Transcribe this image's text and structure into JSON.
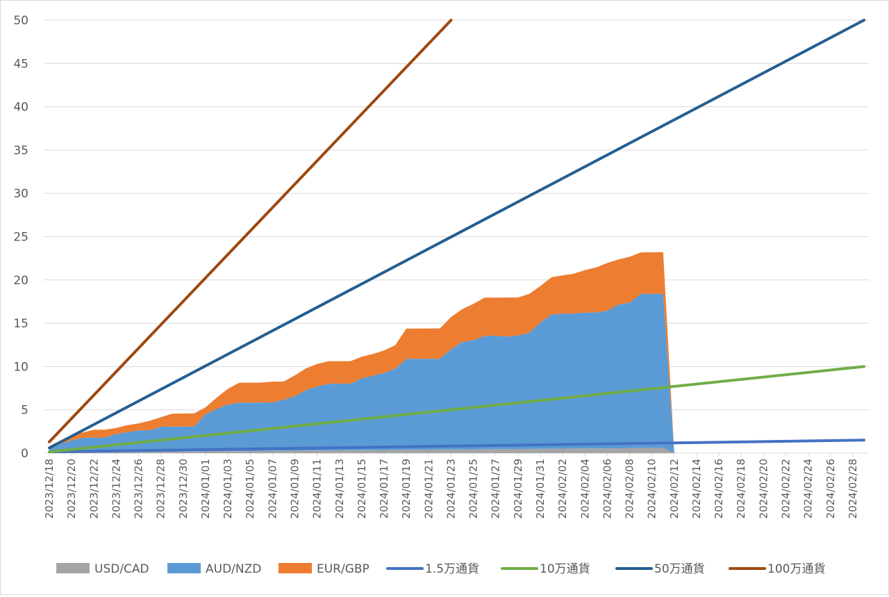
{
  "chart_data": {
    "type": "area",
    "title": "",
    "xlabel": "",
    "ylabel": "",
    "ylim": [
      0,
      50
    ],
    "yticks": [
      "0",
      "5",
      "10",
      "15",
      "20",
      "25",
      "30",
      "35",
      "40",
      "45",
      "50"
    ],
    "grid": true,
    "legend_position": "bottom",
    "x_start_date": "2023/12/18",
    "x_end_date": "2024/02/29",
    "x_ticks": [
      "2023/12/18",
      "2023/12/20",
      "2023/12/22",
      "2023/12/24",
      "2023/12/26",
      "2023/12/28",
      "2023/12/30",
      "2024/01/01",
      "2024/01/03",
      "2024/01/05",
      "2024/01/07",
      "2024/01/09",
      "2024/01/11",
      "2024/01/13",
      "2024/01/15",
      "2024/01/17",
      "2024/01/19",
      "2024/01/21",
      "2024/01/23",
      "2024/01/25",
      "2024/01/27",
      "2024/01/29",
      "2024/01/31",
      "2024/02/02",
      "2024/02/04",
      "2024/02/06",
      "2024/02/08",
      "2024/02/10",
      "2024/02/12",
      "2024/02/14",
      "2024/02/16",
      "2024/02/18",
      "2024/02/20",
      "2024/02/22",
      "2024/02/24",
      "2024/02/26",
      "2024/02/28"
    ],
    "stacked_area_series": [
      {
        "name": "USD/CAD",
        "color": "#a5a5a5",
        "x": [
          "2023/12/18",
          "2023/12/22",
          "2023/12/28",
          "2024/01/01",
          "2024/01/11",
          "2024/01/21",
          "2024/01/31",
          "2024/02/11",
          "2024/02/12"
        ],
        "values": [
          0.05,
          0.1,
          0.15,
          0.2,
          0.3,
          0.4,
          0.5,
          0.6,
          0.0
        ]
      },
      {
        "name": "AUD/NZD",
        "color": "#5b9bd5",
        "x": [
          "2023/12/18",
          "2023/12/19",
          "2023/12/20",
          "2023/12/21",
          "2023/12/22",
          "2023/12/23",
          "2023/12/24",
          "2023/12/25",
          "2023/12/26",
          "2023/12/27",
          "2023/12/28",
          "2023/12/29",
          "2023/12/30",
          "2023/12/31",
          "2024/01/01",
          "2024/01/02",
          "2024/01/03",
          "2024/01/04",
          "2024/01/05",
          "2024/01/06",
          "2024/01/07",
          "2024/01/08",
          "2024/01/09",
          "2024/01/10",
          "2024/01/11",
          "2024/01/12",
          "2024/01/13",
          "2024/01/14",
          "2024/01/15",
          "2024/01/16",
          "2024/01/17",
          "2024/01/18",
          "2024/01/19",
          "2024/01/20",
          "2024/01/21",
          "2024/01/22",
          "2024/01/23",
          "2024/01/24",
          "2024/01/25",
          "2024/01/26",
          "2024/01/27",
          "2024/01/28",
          "2024/01/29",
          "2024/01/30",
          "2024/01/31",
          "2024/02/01",
          "2024/02/02",
          "2024/02/03",
          "2024/02/04",
          "2024/02/05",
          "2024/02/06",
          "2024/02/07",
          "2024/02/08",
          "2024/02/09",
          "2024/02/10",
          "2024/02/11",
          "2024/02/12"
        ],
        "values": [
          0.45,
          1.0,
          1.4,
          1.7,
          1.7,
          1.7,
          2.1,
          2.3,
          2.5,
          2.5,
          2.9,
          2.9,
          2.9,
          2.9,
          4.3,
          4.9,
          5.4,
          5.6,
          5.6,
          5.6,
          5.6,
          5.9,
          6.3,
          7.0,
          7.4,
          7.7,
          7.7,
          7.7,
          8.3,
          8.6,
          8.9,
          9.4,
          10.5,
          10.5,
          10.5,
          10.5,
          11.6,
          12.4,
          12.6,
          13.1,
          13.1,
          13.0,
          13.1,
          13.4,
          14.6,
          15.5,
          15.6,
          15.6,
          15.7,
          15.7,
          15.9,
          16.6,
          16.8,
          17.8,
          17.8,
          17.8,
          0.0
        ]
      },
      {
        "name": "EUR/GBP",
        "color": "#ed7d31",
        "x": [
          "2023/12/18",
          "2023/12/19",
          "2023/12/20",
          "2023/12/21",
          "2023/12/22",
          "2023/12/23",
          "2023/12/24",
          "2023/12/25",
          "2023/12/26",
          "2023/12/27",
          "2023/12/28",
          "2023/12/29",
          "2023/12/30",
          "2023/12/31",
          "2024/01/01",
          "2024/01/02",
          "2024/01/03",
          "2024/01/04",
          "2024/01/05",
          "2024/01/06",
          "2024/01/07",
          "2024/01/08",
          "2024/01/09",
          "2024/01/10",
          "2024/01/11",
          "2024/01/12",
          "2024/01/13",
          "2024/01/14",
          "2024/01/15",
          "2024/01/16",
          "2024/01/17",
          "2024/01/18",
          "2024/01/19",
          "2024/01/20",
          "2024/01/21",
          "2024/01/22",
          "2024/01/23",
          "2024/01/24",
          "2024/01/25",
          "2024/01/26",
          "2024/01/27",
          "2024/01/28",
          "2024/01/29",
          "2024/01/30",
          "2024/01/31",
          "2024/02/01",
          "2024/02/02",
          "2024/02/03",
          "2024/02/04",
          "2024/02/05",
          "2024/02/06",
          "2024/02/07",
          "2024/02/08",
          "2024/02/09",
          "2024/02/10",
          "2024/02/11",
          "2024/02/12"
        ],
        "values": [
          0.3,
          0.4,
          0.5,
          0.6,
          0.9,
          0.9,
          0.7,
          0.8,
          0.8,
          1.1,
          1.1,
          1.5,
          1.5,
          1.5,
          0.8,
          1.3,
          1.8,
          2.3,
          2.3,
          2.3,
          2.4,
          2.1,
          2.4,
          2.5,
          2.6,
          2.6,
          2.6,
          2.6,
          2.5,
          2.5,
          2.6,
          2.7,
          3.5,
          3.5,
          3.5,
          3.5,
          3.7,
          3.8,
          4.2,
          4.4,
          4.4,
          4.5,
          4.4,
          4.5,
          4.2,
          4.3,
          4.4,
          4.6,
          4.9,
          5.2,
          5.5,
          5.2,
          5.3,
          4.8,
          4.8,
          4.8,
          0.0
        ]
      }
    ],
    "line_series": [
      {
        "name": "1.5万通貨",
        "color": "#4472c4",
        "start_value": 0.15,
        "end_value": 1.5
      },
      {
        "name": "10万通貨",
        "color": "#70ad47",
        "start_value": 0.15,
        "end_value": 10
      },
      {
        "name": "50万通貨",
        "color": "#255e91",
        "start_value": 0.6,
        "end_value": 50
      },
      {
        "name": "100万通貨",
        "color": "#9e480e",
        "start_value": 1.3,
        "end_value": 50,
        "end_date": "2024/01/23"
      }
    ],
    "legend": [
      "USD/CAD",
      "AUD/NZD",
      "EUR/GBP",
      "1.5万通貨",
      "10万通貨",
      "50万通貨",
      "100万通貨"
    ]
  }
}
